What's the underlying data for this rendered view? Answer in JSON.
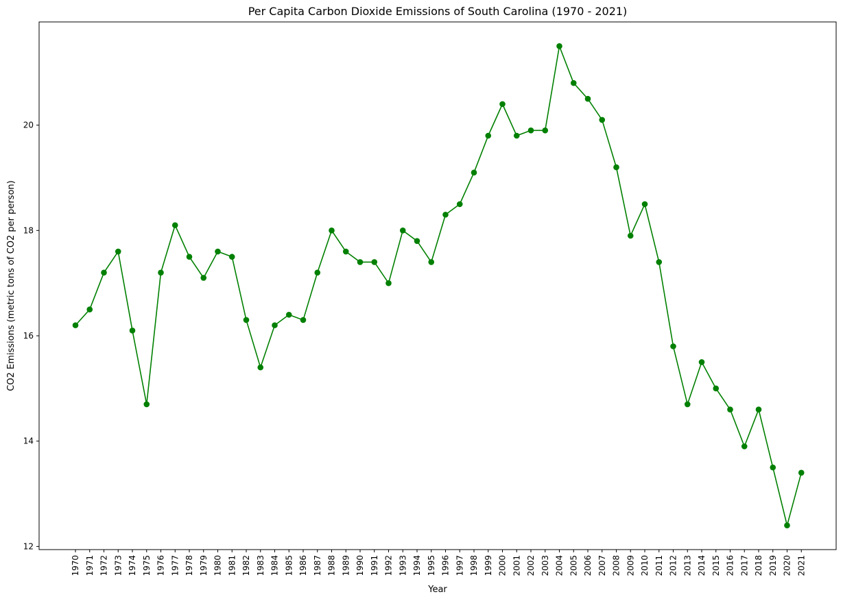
{
  "chart_data": {
    "type": "line",
    "title": "Per Capita Carbon Dioxide Emissions of South Carolina (1970 - 2021)",
    "xlabel": "Year",
    "ylabel": "CO2 Emissions (metric tons of CO2 per person)",
    "x": [
      "1970",
      "1971",
      "1972",
      "1973",
      "1974",
      "1975",
      "1976",
      "1977",
      "1978",
      "1979",
      "1980",
      "1981",
      "1982",
      "1983",
      "1984",
      "1985",
      "1986",
      "1987",
      "1988",
      "1989",
      "1990",
      "1991",
      "1992",
      "1993",
      "1994",
      "1995",
      "1996",
      "1997",
      "1998",
      "1999",
      "2000",
      "2001",
      "2002",
      "2003",
      "2004",
      "2005",
      "2006",
      "2007",
      "2008",
      "2009",
      "2010",
      "2011",
      "2012",
      "2013",
      "2014",
      "2015",
      "2016",
      "2017",
      "2018",
      "2019",
      "2020",
      "2021"
    ],
    "series": [
      {
        "values": [
          16.2,
          16.5,
          17.2,
          17.6,
          16.1,
          14.7,
          17.2,
          18.1,
          17.5,
          17.1,
          17.6,
          17.5,
          16.3,
          15.4,
          16.2,
          16.4,
          16.3,
          17.2,
          18.0,
          17.6,
          17.4,
          17.4,
          17.0,
          18.0,
          17.8,
          17.4,
          18.3,
          18.5,
          19.1,
          19.8,
          20.4,
          19.8,
          19.9,
          19.9,
          21.5,
          20.8,
          20.5,
          20.1,
          19.2,
          17.9,
          18.5,
          17.4,
          15.8,
          14.7,
          15.5,
          15.0,
          14.6,
          13.9,
          14.6,
          13.5,
          12.4,
          13.4
        ],
        "color": "#008000",
        "marker": "circle"
      }
    ],
    "yticks": [
      12,
      14,
      16,
      18,
      20
    ],
    "ylim": [
      11.94,
      21.96
    ],
    "grid": false,
    "legend": "none"
  }
}
